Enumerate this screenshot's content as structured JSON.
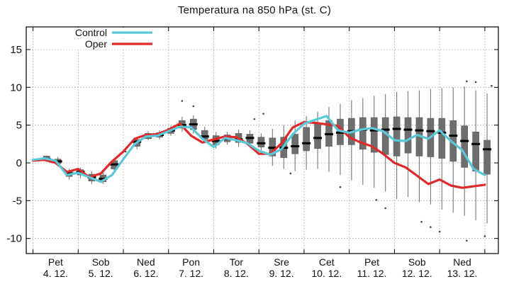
{
  "chart_data": {
    "type": "line",
    "title": "Temperatura na 850 hPa (st. C)",
    "xlabel": "",
    "ylabel": "",
    "ylim": [
      -12,
      18
    ],
    "yticks": [
      -10,
      -5,
      0,
      5,
      10,
      15
    ],
    "grid": true,
    "legend_position": "top-left",
    "x_day_labels": [
      {
        "day": "Pet",
        "date": "4. 12."
      },
      {
        "day": "Sob",
        "date": "5. 12."
      },
      {
        "day": "Ned",
        "date": "6. 12."
      },
      {
        "day": "Pon",
        "date": "7. 12."
      },
      {
        "day": "Tor",
        "date": "8. 12."
      },
      {
        "day": "Sre",
        "date": "9. 12."
      },
      {
        "day": "Cet",
        "date": "10. 12."
      },
      {
        "day": "Pet",
        "date": "11. 12."
      },
      {
        "day": "Sob",
        "date": "12. 12."
      },
      {
        "day": "Ned",
        "date": "13. 12."
      }
    ],
    "x": [
      0,
      0.25,
      0.5,
      0.75,
      1,
      1.25,
      1.5,
      1.75,
      2,
      2.25,
      2.5,
      2.75,
      3,
      3.25,
      3.5,
      3.75,
      4,
      4.25,
      4.5,
      4.75,
      5,
      5.25,
      5.5,
      5.75,
      6,
      6.25,
      6.5,
      6.75,
      7,
      7.25,
      7.5,
      7.75,
      8,
      8.25,
      8.5,
      8.75,
      9,
      9.25,
      9.5,
      9.75,
      10
    ],
    "series": [
      {
        "name": "Control",
        "color": "#5bc8d8",
        "values": [
          0.4,
          0.6,
          0.3,
          -1.6,
          -1.3,
          -1.9,
          -2.5,
          -1.6,
          0.5,
          2.5,
          3.5,
          3.6,
          4.2,
          4.8,
          4.7,
          3.2,
          2.1,
          3.3,
          3.0,
          2.6,
          1.6,
          1.1,
          1.8,
          3.8,
          5.2,
          5.7,
          6.2,
          4.3,
          4.0,
          4.4,
          4.6,
          4.2,
          3.0,
          2.9,
          3.7,
          3.2,
          4.3,
          2.9,
          1.7,
          -0.8,
          -1.6
        ]
      },
      {
        "name": "Oper",
        "color": "#e0292b",
        "values": [
          0.3,
          0.4,
          0.0,
          -1.2,
          -0.8,
          -1.9,
          -1.4,
          0.2,
          1.5,
          3.2,
          3.7,
          3.8,
          4.4,
          5.2,
          3.6,
          2.7,
          3.1,
          3.5,
          3.4,
          2.5,
          1.2,
          1.2,
          2.6,
          4.7,
          5.4,
          5.3,
          5.1,
          4.9,
          3.4,
          2.7,
          2.2,
          1.2,
          0.0,
          -0.6,
          -1.7,
          -2.8,
          -2.2,
          -3.0,
          -3.3,
          -3.1,
          -2.9
        ]
      }
    ],
    "ensemble_boxes": [
      {
        "x": 0.3,
        "min": 0.2,
        "q1": 0.3,
        "q3": 0.9,
        "max": 1.0,
        "med": 0.5
      },
      {
        "x": 0.55,
        "min": -0.3,
        "q1": -0.1,
        "q3": 0.5,
        "max": 0.8,
        "med": 0.2
      },
      {
        "x": 0.8,
        "min": -2.2,
        "q1": -1.8,
        "q3": -1.1,
        "max": -0.8,
        "med": -1.4
      },
      {
        "x": 1.05,
        "min": -2.0,
        "q1": -1.6,
        "q3": -0.9,
        "max": -0.6,
        "med": -1.2
      },
      {
        "x": 1.3,
        "min": -2.8,
        "q1": -2.4,
        "q3": -1.5,
        "max": -1.1,
        "med": -1.9
      },
      {
        "x": 1.55,
        "min": -2.8,
        "q1": -2.5,
        "q3": -1.6,
        "max": -1.2,
        "med": -2.1
      },
      {
        "x": 1.8,
        "min": -1.2,
        "q1": -0.8,
        "q3": 0.3,
        "max": 0.6,
        "med": -0.2
      },
      {
        "x": 2.3,
        "min": 1.8,
        "q1": 2.2,
        "q3": 3.1,
        "max": 3.4,
        "med": 2.8
      },
      {
        "x": 2.55,
        "min": 3.0,
        "q1": 3.2,
        "q3": 3.9,
        "max": 4.2,
        "med": 3.6
      },
      {
        "x": 2.8,
        "min": 3.1,
        "q1": 3.4,
        "q3": 4.0,
        "max": 4.3,
        "med": 3.7
      },
      {
        "x": 3.05,
        "min": 3.6,
        "q1": 3.9,
        "q3": 4.6,
        "max": 4.9,
        "med": 4.3
      },
      {
        "x": 3.3,
        "min": 4.1,
        "q1": 4.6,
        "q3": 5.6,
        "max": 6.1,
        "med": 5.0
      },
      {
        "x": 3.55,
        "min": 3.9,
        "q1": 4.4,
        "q3": 5.8,
        "max": 6.3,
        "med": 5.1
      },
      {
        "x": 3.8,
        "min": 2.6,
        "q1": 3.1,
        "q3": 4.3,
        "max": 4.8,
        "med": 3.5
      },
      {
        "x": 4.05,
        "min": 1.9,
        "q1": 2.4,
        "q3": 3.6,
        "max": 4.1,
        "med": 2.9
      },
      {
        "x": 4.3,
        "min": 2.4,
        "q1": 2.8,
        "q3": 3.7,
        "max": 4.1,
        "med": 3.2
      },
      {
        "x": 4.55,
        "min": 2.1,
        "q1": 2.7,
        "q3": 3.9,
        "max": 4.4,
        "med": 3.1
      },
      {
        "x": 4.8,
        "min": 2.2,
        "q1": 2.6,
        "q3": 3.8,
        "max": 4.3,
        "med": 3.3
      },
      {
        "x": 5.05,
        "min": 1.5,
        "q1": 2.1,
        "q3": 3.4,
        "max": 3.9,
        "med": 2.6
      },
      {
        "x": 5.3,
        "min": -0.4,
        "q1": 0.9,
        "q3": 3.3,
        "max": 4.5,
        "med": 2.0
      },
      {
        "x": 5.55,
        "min": -0.8,
        "q1": 0.7,
        "q3": 3.4,
        "max": 5.0,
        "med": 2.0
      },
      {
        "x": 5.8,
        "min": -1.1,
        "q1": 1.2,
        "q3": 3.8,
        "max": 5.6,
        "med": 2.2
      },
      {
        "x": 6.05,
        "min": -0.9,
        "q1": 1.6,
        "q3": 4.7,
        "max": 6.2,
        "med": 2.6
      },
      {
        "x": 6.3,
        "min": -0.8,
        "q1": 1.9,
        "q3": 5.2,
        "max": 6.8,
        "med": 3.3
      },
      {
        "x": 6.55,
        "min": -1.2,
        "q1": 2.2,
        "q3": 5.6,
        "max": 7.4,
        "med": 3.8
      },
      {
        "x": 6.8,
        "min": -1.6,
        "q1": 2.4,
        "q3": 5.8,
        "max": 7.8,
        "med": 4.0
      },
      {
        "x": 7.05,
        "min": -2.3,
        "q1": 2.4,
        "q3": 5.9,
        "max": 8.3,
        "med": 4.2
      },
      {
        "x": 7.3,
        "min": -2.9,
        "q1": 1.8,
        "q3": 6.0,
        "max": 8.6,
        "med": 4.4
      },
      {
        "x": 7.55,
        "min": -3.3,
        "q1": 1.4,
        "q3": 6.0,
        "max": 8.9,
        "med": 4.3
      },
      {
        "x": 7.8,
        "min": -3.8,
        "q1": 1.1,
        "q3": 6.0,
        "max": 9.1,
        "med": 4.4
      },
      {
        "x": 8.05,
        "min": -4.8,
        "q1": 0.9,
        "q3": 6.1,
        "max": 9.4,
        "med": 4.5
      },
      {
        "x": 8.3,
        "min": -4.5,
        "q1": 1.3,
        "q3": 6.0,
        "max": 9.5,
        "med": 4.4
      },
      {
        "x": 8.55,
        "min": -5.2,
        "q1": 0.9,
        "q3": 6.0,
        "max": 9.6,
        "med": 4.3
      },
      {
        "x": 8.8,
        "min": -5.5,
        "q1": 0.8,
        "q3": 5.9,
        "max": 9.8,
        "med": 4.2
      },
      {
        "x": 9.05,
        "min": -6.2,
        "q1": 0.6,
        "q3": 5.9,
        "max": 9.9,
        "med": 4.0
      },
      {
        "x": 9.3,
        "min": -6.6,
        "q1": 0.2,
        "q3": 5.6,
        "max": 10.0,
        "med": 3.6
      },
      {
        "x": 9.55,
        "min": -7.0,
        "q1": -0.6,
        "q3": 4.9,
        "max": 10.1,
        "med": 2.9
      },
      {
        "x": 9.8,
        "min": -7.6,
        "q1": -1.1,
        "q3": 4.1,
        "max": 9.6,
        "med": 2.5
      },
      {
        "x": 10.05,
        "min": -8.0,
        "q1": -1.5,
        "q3": 3.0,
        "max": 9.2,
        "med": 1.8
      }
    ],
    "outliers": [
      [
        2.05,
        1.5
      ],
      [
        3.3,
        8.2
      ],
      [
        3.55,
        7.5
      ],
      [
        4.9,
        5.8
      ],
      [
        5.1,
        6.5
      ],
      [
        5.7,
        -1.4
      ],
      [
        6.8,
        -3.2
      ],
      [
        7.6,
        -4.9
      ],
      [
        7.8,
        -6.0
      ],
      [
        8.6,
        -7.8
      ],
      [
        8.8,
        -8.5
      ],
      [
        9.0,
        -9.1
      ],
      [
        9.6,
        10.8
      ],
      [
        9.8,
        10.7
      ],
      [
        9.6,
        -10.3
      ],
      [
        10.0,
        -9.7
      ],
      [
        10.15,
        10.2
      ]
    ]
  }
}
